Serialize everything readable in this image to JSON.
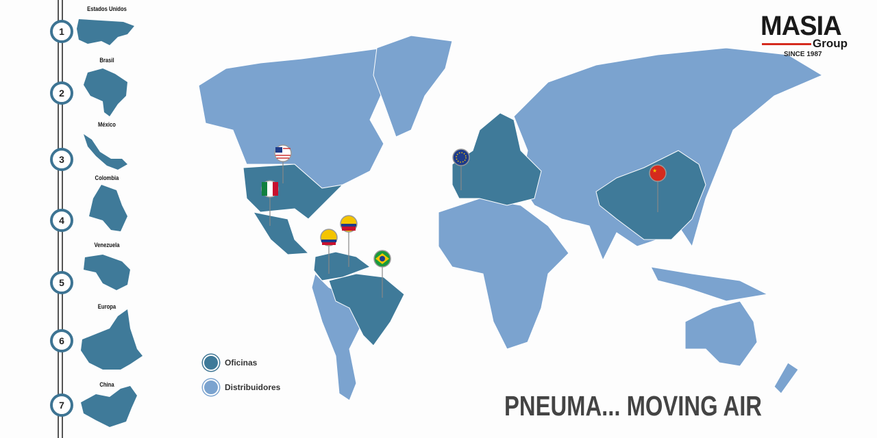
{
  "logo": {
    "name": "MASIA",
    "sub": "Group",
    "since": "SINCE 1987"
  },
  "countries": [
    {
      "num": "1",
      "label": "Estados Unidos"
    },
    {
      "num": "2",
      "label": "Brasil"
    },
    {
      "num": "3",
      "label": "México"
    },
    {
      "num": "4",
      "label": "Colombia"
    },
    {
      "num": "5",
      "label": "Venezuela"
    },
    {
      "num": "6",
      "label": "Europa"
    },
    {
      "num": "7",
      "label": "China"
    }
  ],
  "legend": {
    "offices": "Oficinas",
    "distributors": "Distribuidores"
  },
  "slogan": "PNEUMA... MOVING AIR",
  "colors": {
    "offices": "#3f7a99",
    "distributors": "#7ba3cf",
    "accent": "#d52b1e"
  },
  "pins": [
    "flag-usa",
    "flag-mexico",
    "flag-venezuela",
    "flag-colombia",
    "flag-brazil",
    "flag-eu",
    "flag-china"
  ]
}
